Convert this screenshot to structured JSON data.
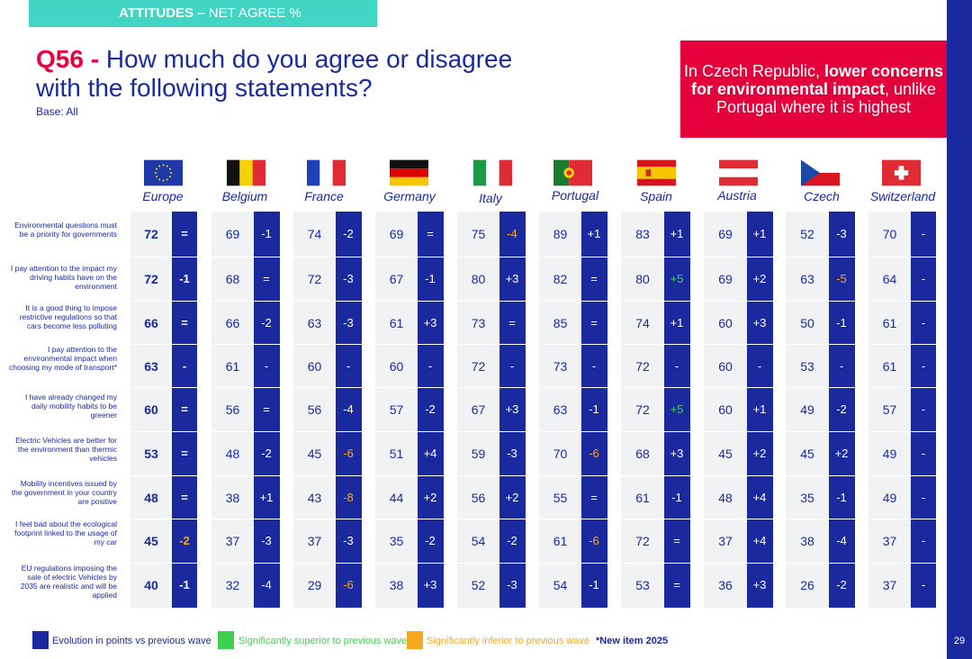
{
  "header": {
    "label_bold": "ATTITUDES",
    "label_rest": " – NET AGREE %"
  },
  "title": {
    "q": "Q56 - ",
    "line1": "How much do you agree or disagree",
    "line2": "with the following statements?",
    "base": "Base: All"
  },
  "callout": {
    "part1": "In Czech Republic, ",
    "bold": "lower concerns for environmental impact",
    "part2": ", unlike Portugal where it is highest"
  },
  "page_number": "29",
  "legend": {
    "evolution": "Evolution in points vs previous wave",
    "superior": "Significantly superior to previous wave",
    "inferior": "Significantly inferior to previous wave",
    "new_item": "*New item 2025"
  },
  "colors": {
    "navy": "#1a2a9e",
    "red": "#e4003b",
    "teal": "#41d6c3",
    "green": "#3fd14e",
    "orange": "#f7a823",
    "grey": "#f1f2f4"
  },
  "chart_data": {
    "type": "table",
    "title": "Q56 - How much do you agree or disagree with the following statements?",
    "countries": [
      "Europe",
      "Belgium",
      "France",
      "Germany",
      "Italy",
      "Portugal",
      "Spain",
      "Austria",
      "Czech",
      "Switzerland"
    ],
    "statements": [
      "Environmental questions must be a priority for governments",
      "I pay attention to the impact my driving habits have on the environment",
      "It is a good thing to impose restrictive regulations so that cars become less polluting",
      "I pay attention to the environmental impact when choosing my mode of transport*",
      "I have already changed my daily mobility habits to be greener",
      "Electric Vehicles are better for the environment than thermic vehicles",
      "Mobility incentives issued by the government in your country are positive",
      "I feel bad about the ecological footprint linked to the usage of my car",
      "EU regulations imposing the sale of electric Vehicles by 2035 are realistic and will be applied"
    ],
    "values": [
      [
        72,
        69,
        74,
        69,
        75,
        89,
        83,
        69,
        52,
        70
      ],
      [
        72,
        68,
        72,
        67,
        80,
        82,
        80,
        69,
        63,
        64
      ],
      [
        66,
        66,
        63,
        61,
        73,
        85,
        74,
        60,
        50,
        61
      ],
      [
        63,
        61,
        60,
        60,
        72,
        73,
        72,
        60,
        53,
        61
      ],
      [
        60,
        56,
        56,
        57,
        67,
        63,
        72,
        60,
        49,
        57
      ],
      [
        53,
        48,
        45,
        51,
        59,
        70,
        68,
        45,
        45,
        49
      ],
      [
        48,
        38,
        43,
        44,
        56,
        55,
        61,
        48,
        35,
        49
      ],
      [
        45,
        37,
        37,
        35,
        54,
        61,
        72,
        37,
        38,
        37
      ],
      [
        40,
        32,
        29,
        38,
        52,
        54,
        53,
        36,
        26,
        37
      ]
    ],
    "changes": [
      [
        "=",
        "-1",
        "-2",
        "=",
        "-4",
        "+1",
        "+1",
        "+1",
        "-3",
        "-"
      ],
      [
        "-1",
        "=",
        "-3",
        "-1",
        "+3",
        "=",
        "+5",
        "+2",
        "-5",
        "-"
      ],
      [
        "=",
        "-2",
        "-3",
        "+3",
        "=",
        "=",
        "+1",
        "+3",
        "-1",
        "-"
      ],
      [
        "-",
        "-",
        "-",
        "-",
        "-",
        "-",
        "-",
        "-",
        "-",
        "-"
      ],
      [
        "=",
        "=",
        "-4",
        "-2",
        "+3",
        "-1",
        "+5",
        "+1",
        "-2",
        "-"
      ],
      [
        "=",
        "-2",
        "-6",
        "+4",
        "-3",
        "-6",
        "+3",
        "+2",
        "+2",
        "-"
      ],
      [
        "=",
        "+1",
        "-8",
        "+2",
        "+2",
        "=",
        "-1",
        "+4",
        "-1",
        "-"
      ],
      [
        "-2",
        "-3",
        "-3",
        "-2",
        "-2",
        "-6",
        "=",
        "+4",
        "-4",
        "-"
      ],
      [
        "-1",
        "-4",
        "-6",
        "+3",
        "-3",
        "-1",
        "=",
        "+3",
        "-2",
        "-"
      ]
    ],
    "significance": [
      [
        "n",
        "n",
        "n",
        "n",
        "inferior",
        "n",
        "n",
        "n",
        "n",
        "n"
      ],
      [
        "n",
        "n",
        "n",
        "n",
        "n",
        "n",
        "superior",
        "n",
        "inferior",
        "n"
      ],
      [
        "n",
        "n",
        "n",
        "n",
        "n",
        "n",
        "n",
        "n",
        "n",
        "n"
      ],
      [
        "n",
        "n",
        "n",
        "n",
        "n",
        "n",
        "n",
        "n",
        "n",
        "n"
      ],
      [
        "n",
        "n",
        "n",
        "n",
        "n",
        "n",
        "superior",
        "n",
        "n",
        "n"
      ],
      [
        "n",
        "n",
        "inferior",
        "n",
        "n",
        "inferior",
        "n",
        "n",
        "n",
        "n"
      ],
      [
        "n",
        "n",
        "inferior",
        "n",
        "n",
        "n",
        "n",
        "n",
        "n",
        "n"
      ],
      [
        "inferior",
        "n",
        "n",
        "n",
        "n",
        "inferior",
        "n",
        "n",
        "n",
        "n"
      ],
      [
        "n",
        "n",
        "inferior",
        "n",
        "n",
        "n",
        "n",
        "n",
        "n",
        "n"
      ]
    ]
  }
}
